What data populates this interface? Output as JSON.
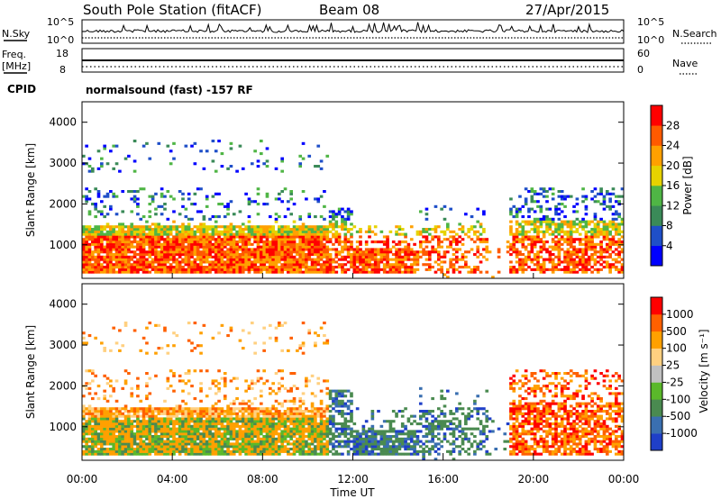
{
  "header": {
    "station": "South Pole Station (fitACF)",
    "beam": "Beam 08",
    "date": "27/Apr/2015"
  },
  "status_panels": {
    "nsky_label": "N.Sky",
    "nsky_ticks": [
      "10^5",
      "10^0"
    ],
    "nsearch_label": "N.Search",
    "nsearch_ticks": [
      "10^5",
      "10^0"
    ],
    "freq_label": "Freq.",
    "freq_unit": "[MHz]",
    "freq_ticks": [
      "18",
      "8"
    ],
    "nave_label": "Nave",
    "nave_ticks": [
      "60",
      "0"
    ],
    "cpid_label": "CPID",
    "cpid_text": "normalsound (fast) -157 RF"
  },
  "chart_data": [
    {
      "type": "heatmap",
      "name": "power",
      "ylabel": "Slant Range [km]",
      "ylim": [
        180,
        4500
      ],
      "yticks": [
        "4000",
        "3000",
        "2000",
        "1000"
      ],
      "colorbar_label": "Power [dB]",
      "colorbar_ticks": [
        "28",
        "24",
        "20",
        "16",
        "12",
        "8",
        "4"
      ],
      "colors": [
        "#0000ff",
        "#1f4fc8",
        "#3a8a58",
        "#4fb545",
        "#e6d200",
        "#ffa000",
        "#ff5a00",
        "#ff0000"
      ]
    },
    {
      "type": "heatmap",
      "name": "velocity",
      "ylabel": "Slant Range [km]",
      "ylim": [
        180,
        4500
      ],
      "yticks": [
        "4000",
        "3000",
        "2000",
        "1000"
      ],
      "colorbar_label": "Velocity [m s⁻¹]",
      "colorbar_ticks": [
        "1000",
        "500",
        "100",
        "25",
        "-25",
        "-100",
        "-500",
        "-1000"
      ],
      "colors": [
        "#1f3fc8",
        "#3a6fb0",
        "#4a8a50",
        "#5ab82a",
        "#c0c0c0",
        "#ffd080",
        "#ffa000",
        "#ff6000",
        "#ff0000"
      ]
    }
  ],
  "xaxis": {
    "label": "Time UT",
    "ticks": [
      "00:00",
      "04:00",
      "08:00",
      "12:00",
      "16:00",
      "20:00",
      "00:00"
    ]
  }
}
